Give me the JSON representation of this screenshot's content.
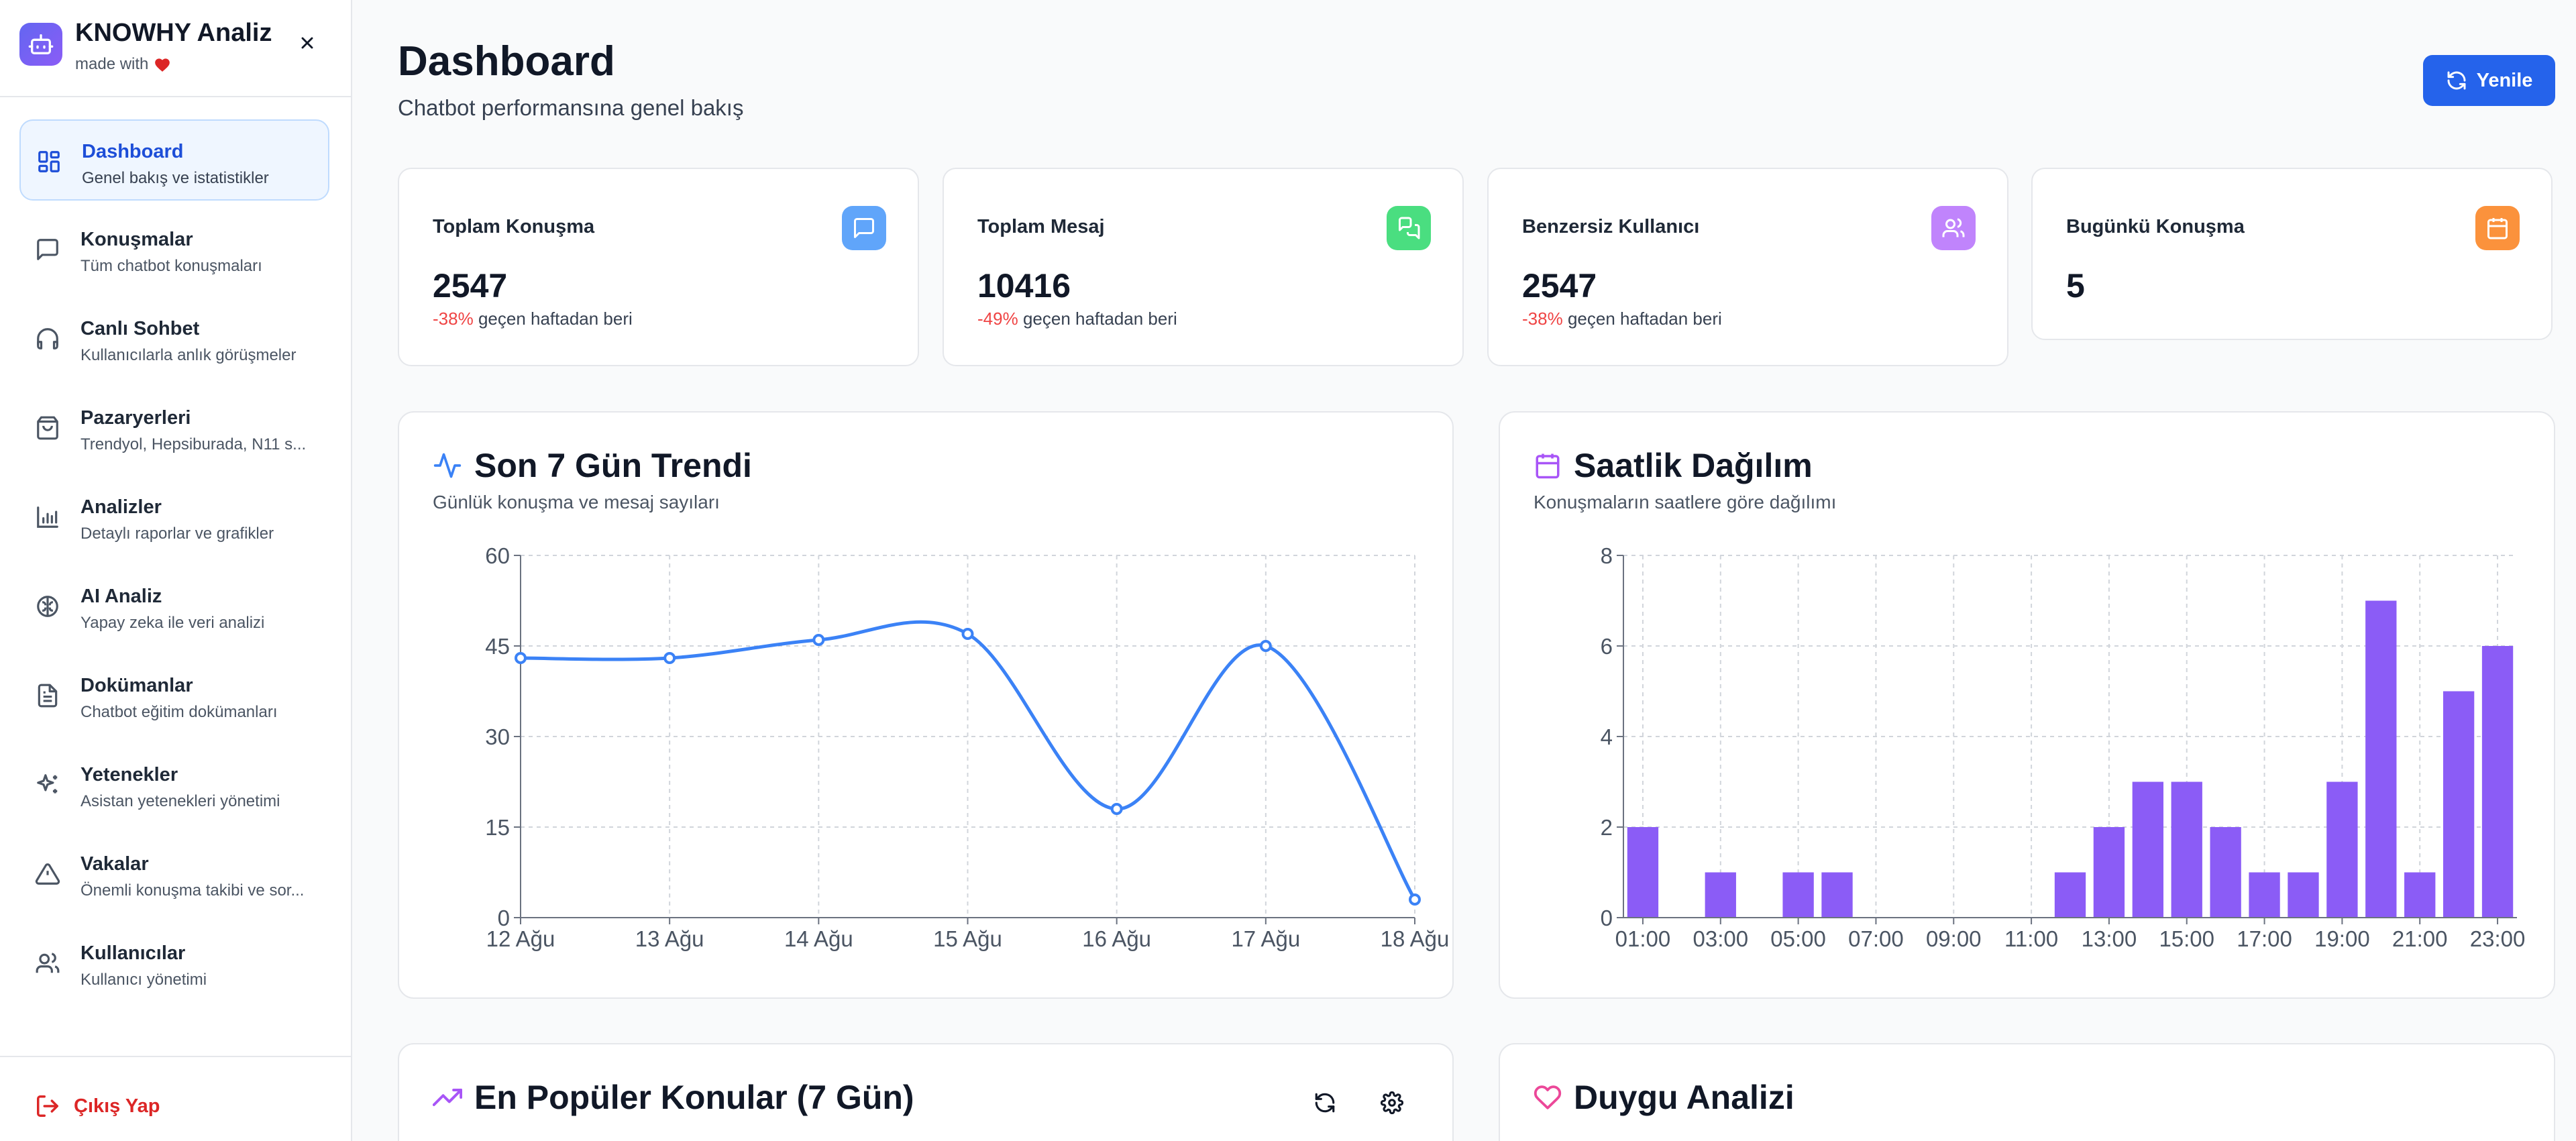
{
  "sidebar": {
    "brand_title": "KNOWHY Analiz",
    "brand_sub": "made with",
    "items": [
      {
        "label": "Dashboard",
        "desc": "Genel bakış ve istatistikler",
        "icon": "dashboard-grid-icon"
      },
      {
        "label": "Konuşmalar",
        "desc": "Tüm chatbot konuşmaları",
        "icon": "message-square-icon"
      },
      {
        "label": "Canlı Sohbet",
        "desc": "Kullanıcılarla anlık görüşmeler",
        "icon": "headphones-icon"
      },
      {
        "label": "Pazaryerleri",
        "desc": "Trendyol, Hepsiburada, N11 s...",
        "icon": "shopping-bag-icon"
      },
      {
        "label": "Analizler",
        "desc": "Detaylı raporlar ve grafikler",
        "icon": "bar-chart-icon"
      },
      {
        "label": "AI Analiz",
        "desc": "Yapay zeka ile veri analizi",
        "icon": "brain-icon"
      },
      {
        "label": "Dokümanlar",
        "desc": "Chatbot eğitim dokümanları",
        "icon": "document-icon"
      },
      {
        "label": "Yetenekler",
        "desc": "Asistan yetenekleri yönetimi",
        "icon": "sparkles-icon"
      },
      {
        "label": "Vakalar",
        "desc": "Önemli konuşma takibi ve sor...",
        "icon": "alert-triangle-icon"
      },
      {
        "label": "Kullanıcılar",
        "desc": "Kullanıcı yönetimi",
        "icon": "users-icon"
      }
    ],
    "logout_label": "Çıkış Yap"
  },
  "header": {
    "title": "Dashboard",
    "subtitle": "Chatbot performansına genel bakış",
    "refresh_label": "Yenile"
  },
  "stats": [
    {
      "label": "Toplam Konuşma",
      "value": "2547",
      "change": "-38%",
      "change_text": "geçen haftadan beri",
      "color": "#60a5fa",
      "icon": "message-square-icon"
    },
    {
      "label": "Toplam Mesaj",
      "value": "10416",
      "change": "-49%",
      "change_text": "geçen haftadan beri",
      "color": "#4ade80",
      "icon": "messages-icon"
    },
    {
      "label": "Benzersiz Kullanıcı",
      "value": "2547",
      "change": "-38%",
      "change_text": "geçen haftadan beri",
      "color": "#c084fc",
      "icon": "users-icon"
    },
    {
      "label": "Bugünkü Konuşma",
      "value": "5",
      "change": "",
      "change_text": "",
      "color": "#fb923c",
      "icon": "calendar-icon"
    }
  ],
  "panels": {
    "trend_title": "Son 7 Gün Trendi",
    "trend_sub": "Günlük konuşma ve mesaj sayıları",
    "hourly_title": "Saatlik Dağılım",
    "hourly_sub": "Konuşmaların saatlere göre dağılımı",
    "topics_title": "En Popüler Konular (7 Gün)",
    "sentiment_title": "Duygu Analizi"
  },
  "chart_data": [
    {
      "type": "line",
      "x": [
        "12 Ağu",
        "13 Ağu",
        "14 Ağu",
        "15 Ağu",
        "16 Ağu",
        "17 Ağu",
        "18 Ağu"
      ],
      "values": [
        43,
        43,
        46,
        47,
        18,
        45,
        3
      ],
      "ylim": [
        0,
        60
      ],
      "yticks": [
        0,
        15,
        30,
        45,
        60
      ],
      "grid": true,
      "color": "#3b82f6"
    },
    {
      "type": "bar",
      "categories": [
        "01:00",
        "02:00",
        "03:00",
        "04:00",
        "05:00",
        "06:00",
        "07:00",
        "08:00",
        "09:00",
        "10:00",
        "11:00",
        "12:00",
        "13:00",
        "14:00",
        "15:00",
        "16:00",
        "17:00",
        "18:00",
        "19:00",
        "20:00",
        "21:00",
        "22:00",
        "23:00"
      ],
      "tick_labels": [
        "01:00",
        "03:00",
        "05:00",
        "07:00",
        "09:00",
        "11:00",
        "13:00",
        "15:00",
        "17:00",
        "19:00",
        "21:00",
        "23:00"
      ],
      "values": [
        2,
        0,
        1,
        0,
        1,
        1,
        0,
        0,
        0,
        0,
        0,
        1,
        2,
        3,
        3,
        2,
        1,
        1,
        3,
        7,
        1,
        5,
        6
      ],
      "ylim": [
        0,
        8
      ],
      "yticks": [
        0,
        2,
        4,
        6,
        8
      ],
      "grid": true,
      "color": "#8b5cf6"
    }
  ]
}
